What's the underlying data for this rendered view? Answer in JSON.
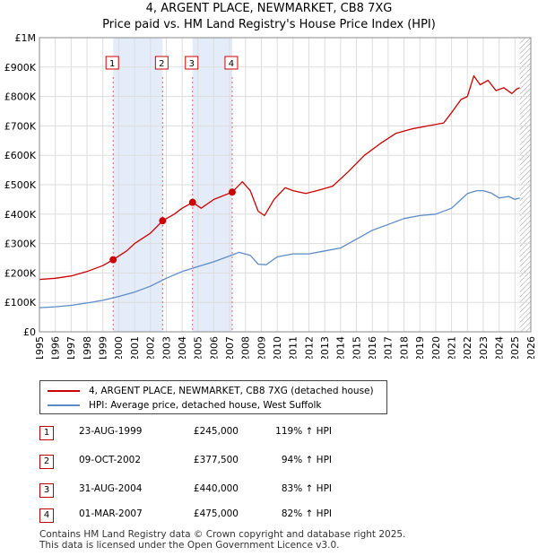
{
  "title": "4, ARGENT PLACE, NEWMARKET, CB8 7XG",
  "subtitle": "Price paid vs. HM Land Registry's House Price Index (HPI)",
  "colors": {
    "property": "#cc0000",
    "hpi": "#5b8cc8",
    "shade": "#dde6f7"
  },
  "chart_data": {
    "type": "line",
    "xlim": [
      1995,
      2026
    ],
    "ylim": [
      0,
      1000000
    ],
    "y_ticks": [
      {
        "value": 0,
        "label": "£0"
      },
      {
        "value": 100000,
        "label": "£100K"
      },
      {
        "value": 200000,
        "label": "£200K"
      },
      {
        "value": 300000,
        "label": "£300K"
      },
      {
        "value": 400000,
        "label": "£400K"
      },
      {
        "value": 500000,
        "label": "£500K"
      },
      {
        "value": 600000,
        "label": "£600K"
      },
      {
        "value": 700000,
        "label": "£700K"
      },
      {
        "value": 800000,
        "label": "£800K"
      },
      {
        "value": 900000,
        "label": "£900K"
      },
      {
        "value": 1000000,
        "label": "£1M"
      }
    ],
    "x_ticks": [
      "1995",
      "1996",
      "1997",
      "1998",
      "1999",
      "2000",
      "2001",
      "2002",
      "2003",
      "2004",
      "2005",
      "2006",
      "2007",
      "2008",
      "2009",
      "2010",
      "2011",
      "2012",
      "2013",
      "2014",
      "2015",
      "2016",
      "2017",
      "2018",
      "2019",
      "2020",
      "2021",
      "2022",
      "2023",
      "2024",
      "2025",
      "2026"
    ],
    "shaded_ranges": [
      [
        1999.65,
        2002.77
      ],
      [
        2004.66,
        2007.16
      ]
    ],
    "hatched_from": 2025.3,
    "series": [
      {
        "name": "4, ARGENT PLACE, NEWMARKET, CB8 7XG (detached house)",
        "x": [
          1995.0,
          1996.0,
          1997.0,
          1998.0,
          1999.0,
          1999.65,
          2000.5,
          2001.0,
          2002.0,
          2002.77,
          2003.5,
          2004.0,
          2004.66,
          2005.2,
          2006.0,
          2007.16,
          2007.8,
          2008.3,
          2008.8,
          2009.2,
          2009.8,
          2010.5,
          2011.0,
          2011.8,
          2012.5,
          2013.5,
          2014.5,
          2015.5,
          2016.5,
          2017.5,
          2018.5,
          2019.5,
          2020.5,
          2021.0,
          2021.6,
          2022.0,
          2022.4,
          2022.8,
          2023.3,
          2023.8,
          2024.3,
          2024.8,
          2025.1,
          2025.3
        ],
        "y": [
          178000,
          182000,
          190000,
          205000,
          225000,
          245000,
          275000,
          300000,
          335000,
          377500,
          400000,
          420000,
          440000,
          420000,
          450000,
          475000,
          510000,
          480000,
          410000,
          395000,
          450000,
          490000,
          480000,
          470000,
          480000,
          495000,
          545000,
          600000,
          640000,
          675000,
          690000,
          700000,
          710000,
          745000,
          790000,
          800000,
          870000,
          840000,
          855000,
          820000,
          830000,
          810000,
          825000,
          830000
        ]
      },
      {
        "name": "HPI: Average price, detached house, West Suffolk",
        "x": [
          1995.0,
          1996.0,
          1997.0,
          1998.0,
          1999.0,
          2000.0,
          2001.0,
          2002.0,
          2003.0,
          2004.0,
          2005.0,
          2006.0,
          2007.0,
          2007.6,
          2008.3,
          2008.8,
          2009.3,
          2010.0,
          2011.0,
          2012.0,
          2013.0,
          2014.0,
          2015.0,
          2016.0,
          2017.0,
          2018.0,
          2019.0,
          2020.0,
          2021.0,
          2021.6,
          2022.0,
          2022.6,
          2023.0,
          2023.5,
          2024.0,
          2024.6,
          2025.0,
          2025.3
        ],
        "y": [
          82000,
          85000,
          90000,
          98000,
          107000,
          120000,
          135000,
          155000,
          182000,
          205000,
          222000,
          238000,
          258000,
          270000,
          260000,
          230000,
          228000,
          255000,
          265000,
          265000,
          275000,
          285000,
          315000,
          345000,
          365000,
          385000,
          395000,
          400000,
          420000,
          450000,
          470000,
          480000,
          480000,
          472000,
          455000,
          460000,
          450000,
          455000
        ]
      }
    ],
    "sales": [
      {
        "n": "1",
        "x": 1999.65,
        "y": 245000
      },
      {
        "n": "2",
        "x": 2002.77,
        "y": 377500
      },
      {
        "n": "3",
        "x": 2004.66,
        "y": 440000
      },
      {
        "n": "4",
        "x": 2007.16,
        "y": 475000
      }
    ]
  },
  "legend": {
    "property": "4, ARGENT PLACE, NEWMARKET, CB8 7XG (detached house)",
    "hpi": "HPI: Average price, detached house, West Suffolk"
  },
  "transactions": [
    {
      "n": "1",
      "date": "23-AUG-1999",
      "price": "£245,000",
      "hpi": "119% ↑ HPI"
    },
    {
      "n": "2",
      "date": "09-OCT-2002",
      "price": "£377,500",
      "hpi": "94% ↑ HPI"
    },
    {
      "n": "3",
      "date": "31-AUG-2004",
      "price": "£440,000",
      "hpi": "83% ↑ HPI"
    },
    {
      "n": "4",
      "date": "01-MAR-2007",
      "price": "£475,000",
      "hpi": "82% ↑ HPI"
    }
  ],
  "footer": {
    "line1": "Contains HM Land Registry data © Crown copyright and database right 2025.",
    "line2": "This data is licensed under the Open Government Licence v3.0."
  }
}
